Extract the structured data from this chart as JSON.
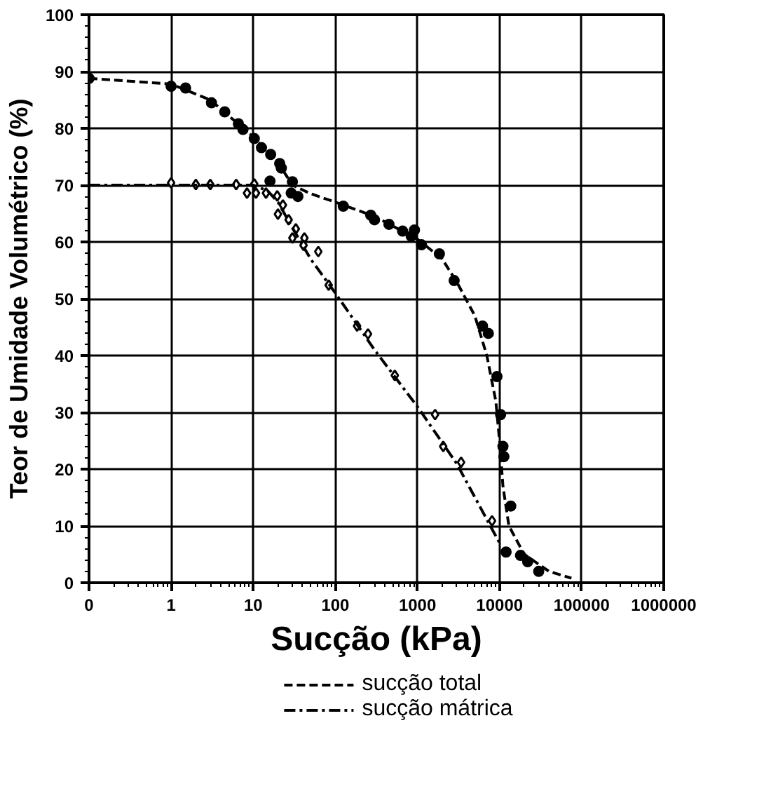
{
  "chart_data": {
    "type": "scatter",
    "xlabel": "Sucção (kPa)",
    "ylabel": "Teor de Umidade Volumétrico (%)",
    "log": "x",
    "xlim": [
      0.1,
      1000000
    ],
    "ylim": [
      0,
      100
    ],
    "xticks": [
      {
        "value": 0.1,
        "label": "0"
      },
      1,
      10,
      100,
      1000,
      10000,
      100000,
      1000000
    ],
    "yticks": [
      0,
      10,
      20,
      30,
      40,
      50,
      60,
      70,
      80,
      90,
      100
    ],
    "grid": true,
    "legend": "bottom",
    "series": [
      {
        "marker": "circle",
        "color": "#000000",
        "x": [
          0.1,
          1,
          1.5,
          3.1,
          4.5,
          6.6,
          7.5,
          10.3,
          12.6,
          16.3,
          21,
          22,
          30,
          16,
          29,
          35,
          125,
          270,
          300,
          450,
          660,
          920,
          840,
          1120,
          1850,
          2800,
          6200,
          7300,
          9300,
          10300,
          11000,
          11300,
          13700,
          12000,
          18000,
          22000,
          30000
        ],
        "values": [
          88.8,
          87.4,
          87.1,
          84.5,
          82.9,
          80.8,
          79.8,
          78.2,
          76.6,
          75.4,
          73.8,
          73,
          70.6,
          70.7,
          68.6,
          68,
          66.3,
          64.7,
          63.9,
          63.1,
          61.9,
          62.1,
          61,
          59.5,
          57.9,
          53.2,
          45.2,
          43.9,
          36.3,
          29.6,
          24,
          22.2,
          13.5,
          5.4,
          4.8,
          3.7,
          2
        ]
      },
      {
        "marker": "diamond",
        "color": "#000000",
        "x": [
          1,
          2,
          3,
          6.2,
          8.4,
          10.3,
          10.8,
          14.3,
          19.6,
          23,
          20,
          27,
          33,
          30,
          42,
          41,
          62,
          83,
          184,
          250,
          530,
          1640,
          2060,
          3400,
          8100
        ],
        "values": [
          70.4,
          70.1,
          70.1,
          70.1,
          68.6,
          70.2,
          68.6,
          68.6,
          68.1,
          66.5,
          64.9,
          63.9,
          62.3,
          60.7,
          60.7,
          59.4,
          58.3,
          52.4,
          45.2,
          43.8,
          36.5,
          29.6,
          24,
          21.2,
          10.9
        ]
      },
      {
        "type": "line",
        "name": "sucção total",
        "line_style": "dashed",
        "color": "#000000",
        "x": [
          0.1,
          1,
          3,
          10,
          20,
          30,
          50,
          100,
          300,
          1000,
          2000,
          3000,
          5000,
          7000,
          9000,
          10000,
          11000,
          13000,
          20000,
          40000,
          75000
        ],
        "values": [
          88.8,
          87.8,
          85,
          78.5,
          74,
          70,
          68.5,
          67,
          64.5,
          60.5,
          57,
          53,
          47,
          40,
          32,
          25,
          17,
          10,
          5,
          2,
          0.8
        ]
      },
      {
        "type": "line",
        "name": "sucção mátrica",
        "line_style": "dashdot",
        "color": "#000000",
        "x": [
          0.1,
          10,
          15,
          20,
          30,
          50,
          100,
          300,
          1000,
          3000,
          10000
        ],
        "values": [
          70,
          70,
          69,
          67,
          62.5,
          57,
          51,
          41,
          31,
          21,
          7
        ]
      }
    ]
  }
}
